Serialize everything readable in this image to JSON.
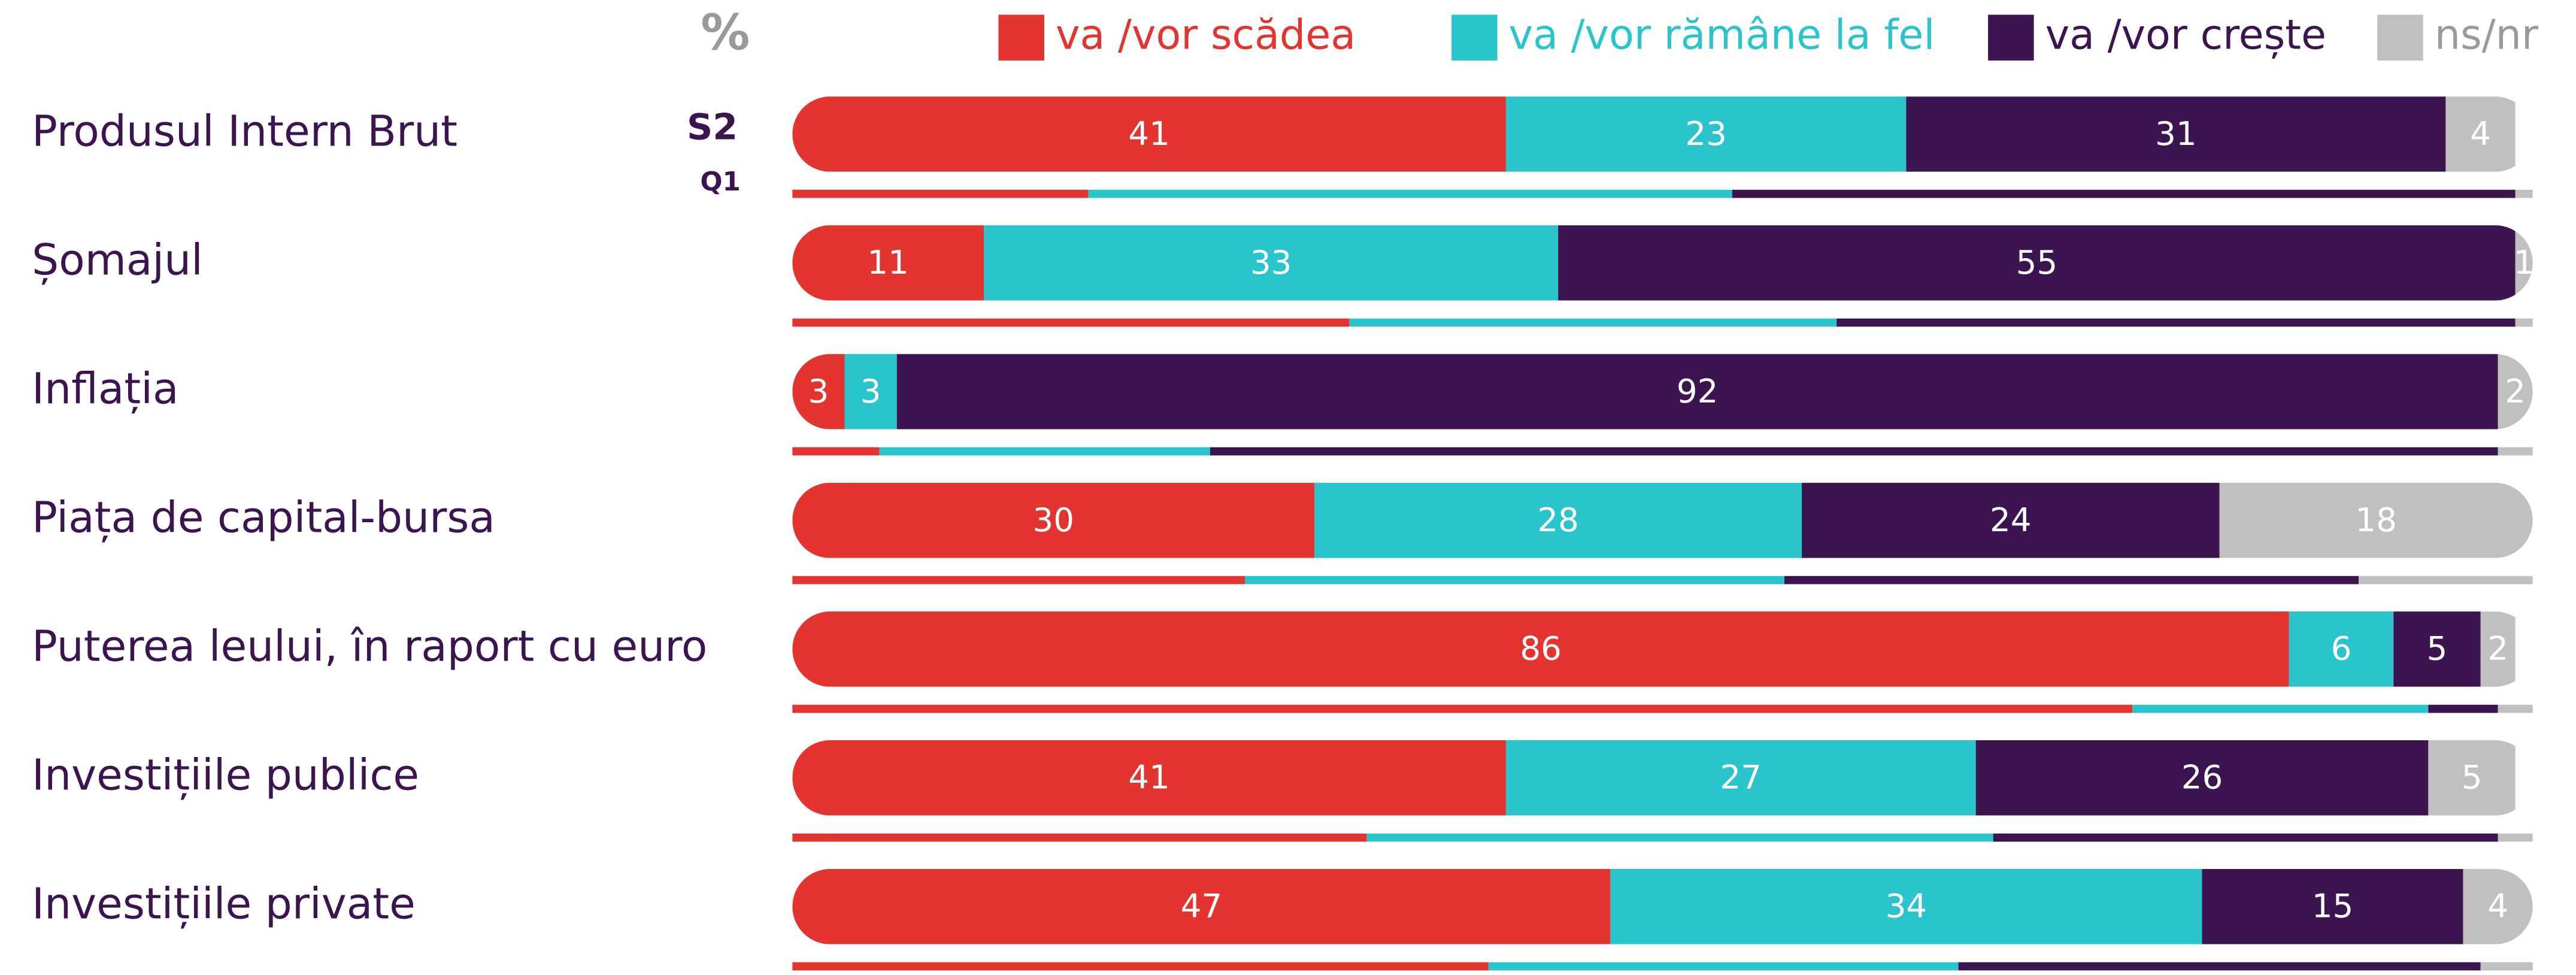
{
  "chart_data": {
    "type": "stacked-bar",
    "unit": "%",
    "periods": [
      "S2",
      "Q1"
    ],
    "categories": [
      "Produsul Intern Brut",
      "Șomajul",
      "Inflația",
      "Piața de capital-bursa",
      "Puterea leului, în raport cu euro",
      "Investițiile publice",
      "Investițiile private"
    ],
    "xlim": [
      0,
      100
    ],
    "series": [
      {
        "name": "va /vor scădea",
        "color": "#e3342f",
        "values": [
          41,
          11,
          3,
          30,
          86,
          41,
          47
        ],
        "q1_values": [
          17,
          32,
          5,
          26,
          77,
          33,
          40
        ]
      },
      {
        "name": "va /vor rămâne la fel",
        "color": "#2ac4cc",
        "values": [
          23,
          33,
          3,
          28,
          6,
          27,
          34
        ],
        "q1_values": [
          37,
          28,
          19,
          31,
          17,
          36,
          27
        ]
      },
      {
        "name": "va /vor crește",
        "color": "#3b1450",
        "values": [
          31,
          55,
          92,
          24,
          5,
          26,
          15
        ],
        "q1_values": [
          45,
          39,
          74,
          33,
          4,
          29,
          30
        ]
      },
      {
        "name": "ns/nr",
        "color": "#c0c0c0",
        "values": [
          4,
          1,
          2,
          18,
          2,
          5,
          4
        ],
        "q1_values": [
          1,
          1,
          2,
          10,
          2,
          2,
          3
        ]
      }
    ]
  }
}
